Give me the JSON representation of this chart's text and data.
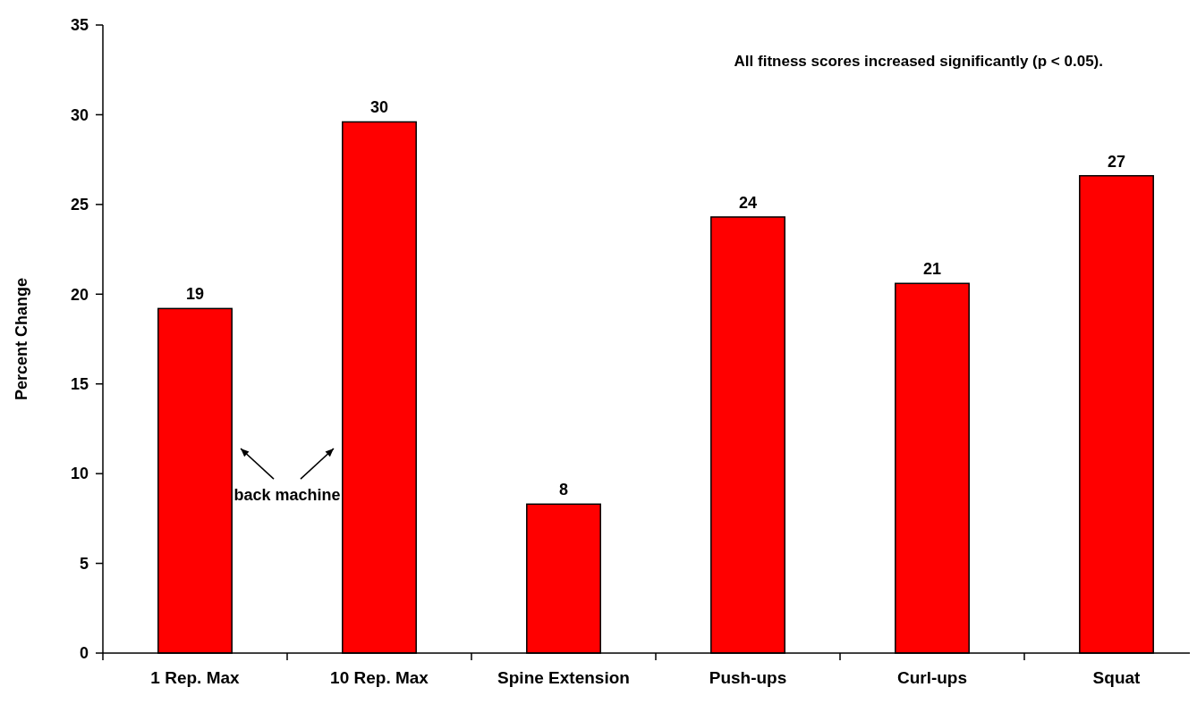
{
  "chart_data": {
    "type": "bar",
    "ylabel": "Percent Change",
    "categories": [
      "1 Rep. Max",
      "10 Rep. Max",
      "Spine Extension",
      "Push-ups",
      "Curl-ups",
      "Squat"
    ],
    "values": [
      19.2,
      29.6,
      8.3,
      24.3,
      20.6,
      26.6
    ],
    "value_labels": [
      "19",
      "30",
      "8",
      "24",
      "21",
      "27"
    ],
    "color": "#ff0000",
    "ylim": [
      0,
      35
    ],
    "yticks": [
      0,
      5,
      10,
      15,
      20,
      25,
      30,
      35
    ],
    "grid": false,
    "annotations": [
      "All fitness scores increased significantly  (p < 0.05).",
      "back machine"
    ]
  }
}
